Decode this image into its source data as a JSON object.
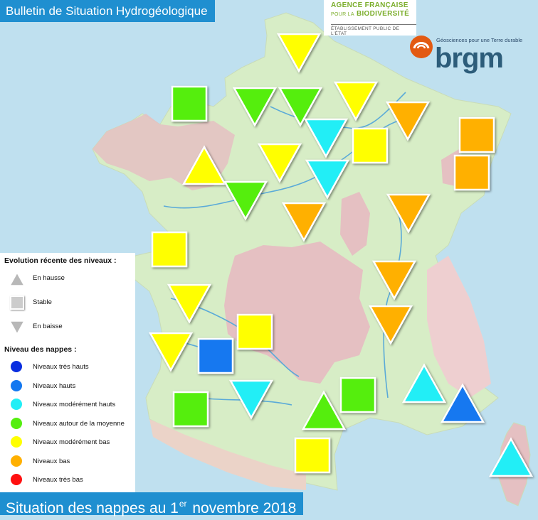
{
  "header": {
    "title": "Bulletin de Situation Hydrogéologique"
  },
  "footer": {
    "text_before": "Situation des nappes au 1",
    "superscript": "er",
    "text_after": " novembre 2018"
  },
  "logos": {
    "afb": {
      "line1": "AGENCE FRANÇAISE",
      "line2_small": "POUR LA",
      "line2": "BIODIVERSITÉ",
      "line3": "ÉTABLISSEMENT PUBLIC DE L'ÉTAT"
    },
    "brgm": {
      "tagline": "Géosciences pour une Terre durable",
      "word": "brgm"
    }
  },
  "legend": {
    "evolution_title": "Evolution récente des niveaux :",
    "evolution": [
      {
        "key": "up",
        "label": "En hausse",
        "icon": "triangle-up-icon"
      },
      {
        "key": "stable",
        "label": "Stable",
        "icon": "square-icon"
      },
      {
        "key": "down",
        "label": "En baisse",
        "icon": "triangle-down-icon"
      }
    ],
    "level_title": "Niveau des nappes :",
    "levels": [
      {
        "key": "tres_hauts",
        "label": "Niveaux très hauts",
        "color": "#0a2ee0"
      },
      {
        "key": "hauts",
        "label": "Niveaux hauts",
        "color": "#1478f0"
      },
      {
        "key": "mod_hauts",
        "label": "Niveaux modérément hauts",
        "color": "#22eef6"
      },
      {
        "key": "moyenne",
        "label": "Niveaux autour de la moyenne",
        "color": "#55ee10"
      },
      {
        "key": "mod_bas",
        "label": "Niveaux modérément bas",
        "color": "#ffff00"
      },
      {
        "key": "bas",
        "label": "Niveaux bas",
        "color": "#ffb000"
      },
      {
        "key": "tres_bas",
        "label": "Niveaux très bas",
        "color": "#ff1010"
      }
    ]
  },
  "colors": {
    "sea": "#bfe0ef",
    "land": "#d7edc6",
    "massif": "#e5c0c2",
    "river": "#5aaad8",
    "banner": "#1f8fd0"
  },
  "stations": [
    {
      "shape": "down",
      "level": "mod_bas"
    },
    {
      "shape": "square",
      "level": "moyenne"
    },
    {
      "shape": "down",
      "level": "moyenne"
    },
    {
      "shape": "down",
      "level": "moyenne"
    },
    {
      "shape": "down",
      "level": "mod_bas"
    },
    {
      "shape": "down",
      "level": "bas"
    },
    {
      "shape": "square",
      "level": "bas"
    },
    {
      "shape": "down",
      "level": "mod_hauts"
    },
    {
      "shape": "square",
      "level": "mod_bas"
    },
    {
      "shape": "square",
      "level": "bas"
    },
    {
      "shape": "down",
      "level": "mod_bas"
    },
    {
      "shape": "down",
      "level": "mod_hauts"
    },
    {
      "shape": "up",
      "level": "mod_bas"
    },
    {
      "shape": "down",
      "level": "moyenne"
    },
    {
      "shape": "down",
      "level": "bas"
    },
    {
      "shape": "down",
      "level": "bas"
    },
    {
      "shape": "square",
      "level": "mod_bas"
    },
    {
      "shape": "down",
      "level": "bas"
    },
    {
      "shape": "down",
      "level": "mod_bas"
    },
    {
      "shape": "down",
      "level": "bas"
    },
    {
      "shape": "square",
      "level": "mod_bas"
    },
    {
      "shape": "down",
      "level": "mod_bas"
    },
    {
      "shape": "square",
      "level": "hauts"
    },
    {
      "shape": "up",
      "level": "mod_hauts"
    },
    {
      "shape": "square",
      "level": "moyenne"
    },
    {
      "shape": "down",
      "level": "mod_hauts"
    },
    {
      "shape": "square",
      "level": "moyenne"
    },
    {
      "shape": "up",
      "level": "moyenne"
    },
    {
      "shape": "up",
      "level": "hauts"
    },
    {
      "shape": "square",
      "level": "mod_bas"
    },
    {
      "shape": "up",
      "level": "mod_hauts"
    }
  ]
}
